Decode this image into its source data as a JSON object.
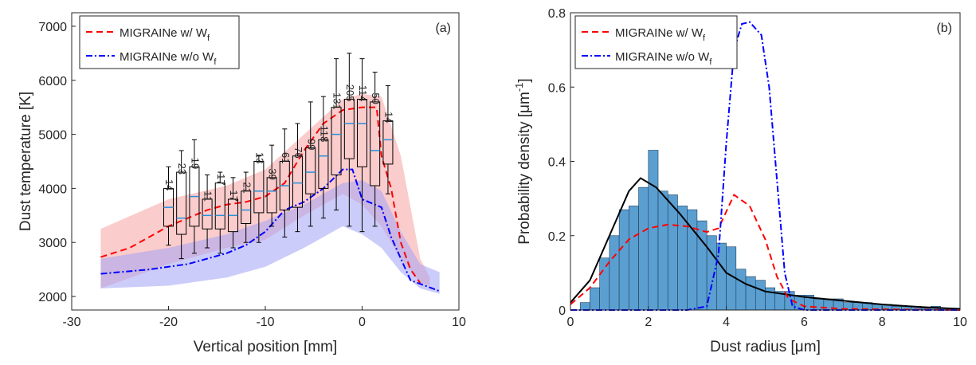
{
  "chart_data": [
    {
      "type": "box",
      "panel_label": "(a)",
      "xlabel": "Vertical position [mm]",
      "ylabel": "Dust temperature [K]",
      "xlim": [
        -30,
        10
      ],
      "ylim": [
        1750,
        7250
      ],
      "xticks": [
        -30,
        -20,
        -10,
        0,
        10
      ],
      "yticks": [
        2000,
        3000,
        4000,
        5000,
        6000,
        7000
      ],
      "bands": [
        {
          "color": "#f5a3a3",
          "x": [
            -27,
            -20,
            -14,
            -10,
            -6,
            -2,
            0,
            2,
            4,
            6,
            7
          ],
          "lower": [
            2150,
            2600,
            2900,
            3050,
            3500,
            3900,
            3700,
            3300,
            2700,
            2250,
            2200
          ],
          "upper": [
            3250,
            3800,
            4050,
            4350,
            5000,
            5650,
            5750,
            5700,
            4600,
            2700,
            2350
          ]
        },
        {
          "color": "#a3a3f5",
          "x": [
            -27,
            -20,
            -14,
            -10,
            -6,
            -2,
            0,
            2,
            4,
            6,
            8
          ],
          "lower": [
            2150,
            2200,
            2350,
            2550,
            2900,
            3300,
            3150,
            2900,
            2450,
            2150,
            2050
          ],
          "upper": [
            2700,
            2900,
            3150,
            3400,
            3700,
            4100,
            4150,
            3950,
            3200,
            2600,
            2450
          ]
        }
      ],
      "series": [
        {
          "name": "MIGRAINe w/ W",
          "name_subscript": "f",
          "color": "#ff0000",
          "dash": "8 5",
          "x": [
            -27,
            -24,
            -22,
            -20,
            -18,
            -16,
            -14,
            -12,
            -10,
            -8,
            -6,
            -4,
            -2,
            0,
            1.5,
            2,
            3,
            4,
            5,
            6
          ],
          "values": [
            2730,
            2900,
            3100,
            3300,
            3450,
            3600,
            3700,
            3750,
            3850,
            4100,
            4700,
            5200,
            5450,
            5500,
            5500,
            4600,
            4000,
            3000,
            2500,
            2250
          ]
        },
        {
          "name": "MIGRAINe w/o W",
          "name_subscript": "f",
          "color": "#0000ff",
          "dash": "8 3 2 3",
          "x": [
            -27,
            -22,
            -18,
            -14,
            -12,
            -10,
            -8,
            -6,
            -4,
            -2,
            -1,
            0,
            2,
            3,
            5,
            8
          ],
          "values": [
            2420,
            2500,
            2600,
            2800,
            2950,
            3200,
            3600,
            3750,
            4000,
            4350,
            4350,
            3800,
            3650,
            3100,
            2300,
            2100
          ]
        }
      ],
      "boxes": [
        {
          "x": -20,
          "whislo": 2950,
          "q1": 3300,
          "med": 3650,
          "q3": 4000,
          "whishi": 4400,
          "count": 14
        },
        {
          "x": -18.67,
          "whislo": 2700,
          "q1": 3150,
          "med": 3450,
          "q3": 4300,
          "whishi": 4700,
          "count": 23
        },
        {
          "x": -17.33,
          "whislo": 2800,
          "q1": 3300,
          "med": 3850,
          "q3": 4400,
          "whishi": 4900,
          "count": 19
        },
        {
          "x": -16,
          "whislo": 2900,
          "q1": 3250,
          "med": 3500,
          "q3": 3800,
          "whishi": 4250,
          "count": 11
        },
        {
          "x": -14.67,
          "whislo": 2800,
          "q1": 3250,
          "med": 3500,
          "q3": 4100,
          "whishi": 4300,
          "count": 17
        },
        {
          "x": -13.33,
          "whislo": 2900,
          "q1": 3200,
          "med": 3500,
          "q3": 3800,
          "whishi": 4200,
          "count": 17
        },
        {
          "x": -12,
          "whislo": 3000,
          "q1": 3350,
          "med": 3600,
          "q3": 3950,
          "whishi": 4300,
          "count": 21
        },
        {
          "x": -10.67,
          "whislo": 3000,
          "q1": 3550,
          "med": 3950,
          "q3": 4500,
          "whishi": 4600,
          "count": 13
        },
        {
          "x": -9.33,
          "whislo": 3300,
          "q1": 3550,
          "med": 3950,
          "q3": 4200,
          "whishi": 4800,
          "count": 39
        },
        {
          "x": -8,
          "whislo": 3100,
          "q1": 3600,
          "med": 4050,
          "q3": 4500,
          "whishi": 5100,
          "count": 61
        },
        {
          "x": -6.67,
          "whislo": 3200,
          "q1": 3650,
          "med": 4100,
          "q3": 4600,
          "whishi": 5200,
          "count": 76
        },
        {
          "x": -5.33,
          "whislo": 3300,
          "q1": 3900,
          "med": 4300,
          "q3": 4750,
          "whishi": 5600,
          "count": 99
        },
        {
          "x": -4,
          "whislo": 3450,
          "q1": 4000,
          "med": 4600,
          "q3": 4900,
          "whishi": 5700,
          "count": 118
        },
        {
          "x": -2.67,
          "whislo": 3600,
          "q1": 4250,
          "med": 5000,
          "q3": 5500,
          "whishi": 6400,
          "count": 131
        },
        {
          "x": -1.33,
          "whislo": 3300,
          "q1": 4550,
          "med": 5200,
          "q3": 5650,
          "whishi": 6500,
          "count": 205
        },
        {
          "x": 0,
          "whislo": 3200,
          "q1": 4400,
          "med": 5200,
          "q3": 5650,
          "whishi": 6400,
          "count": 114
        },
        {
          "x": 1.33,
          "whislo": 3300,
          "q1": 4050,
          "med": 4700,
          "q3": 5600,
          "whishi": 6150,
          "count": 50
        },
        {
          "x": 2.67,
          "whislo": 3900,
          "q1": 4450,
          "med": 4900,
          "q3": 5250,
          "whishi": 5900,
          "count": 14
        }
      ]
    },
    {
      "type": "histogram",
      "panel_label": "(b)",
      "xlabel": "Dust radius [μm]",
      "ylabel": "Probability density [μm",
      "ylabel_superscript": "-1",
      "ylabel_end": "]",
      "xlim": [
        0,
        10
      ],
      "ylim": [
        0,
        0.8
      ],
      "xticks": [
        0,
        2,
        4,
        6,
        8,
        10
      ],
      "yticks": [
        0,
        0.2,
        0.4,
        0.6,
        0.8
      ],
      "hist_color": "#5b9fd1",
      "bins": [
        0,
        0.25,
        0.5,
        0.75,
        1,
        1.25,
        1.5,
        1.75,
        2,
        2.25,
        2.5,
        2.75,
        3,
        3.25,
        3.5,
        3.75,
        4,
        4.25,
        4.5,
        4.75,
        5,
        5.25,
        5.5,
        5.75,
        6,
        6.25,
        6.5,
        6.75,
        7,
        7.25,
        7.5,
        7.75,
        8,
        8.25,
        8.5,
        8.75,
        9,
        9.25,
        9.5,
        9.75,
        10
      ],
      "counts": [
        0,
        0.02,
        0.06,
        0.14,
        0.2,
        0.27,
        0.28,
        0.33,
        0.43,
        0.32,
        0.31,
        0.28,
        0.27,
        0.24,
        0.2,
        0.18,
        0.17,
        0.11,
        0.09,
        0.08,
        0.06,
        0.05,
        0.05,
        0.04,
        0.04,
        0.03,
        0.03,
        0.03,
        0.02,
        0.02,
        0.02,
        0.015,
        0.015,
        0.01,
        0.01,
        0.01,
        0.005,
        0.01,
        0.005,
        0.005
      ],
      "fit": {
        "color": "#000000",
        "x": [
          0,
          0.5,
          1,
          1.5,
          1.8,
          2.2,
          2.8,
          3.5,
          4,
          4.5,
          5,
          6,
          7,
          8,
          9,
          10
        ],
        "values": [
          0.02,
          0.08,
          0.2,
          0.32,
          0.355,
          0.33,
          0.26,
          0.17,
          0.1,
          0.07,
          0.05,
          0.035,
          0.025,
          0.015,
          0.008,
          0.003
        ]
      },
      "series": [
        {
          "name": "MIGRAINe w/ W",
          "name_subscript": "f",
          "color": "#ff0000",
          "dash": "8 5",
          "x": [
            0,
            0.5,
            1,
            1.5,
            2,
            2.5,
            3,
            3.5,
            3.8,
            4.2,
            4.6,
            5,
            5.3,
            5.6,
            6,
            7,
            10
          ],
          "values": [
            0.015,
            0.06,
            0.13,
            0.19,
            0.22,
            0.23,
            0.225,
            0.21,
            0.22,
            0.31,
            0.28,
            0.19,
            0.09,
            0.03,
            0.01,
            0.003,
            0
          ]
        },
        {
          "name": "MIGRAINe w/o W",
          "name_subscript": "f",
          "color": "#0000ff",
          "dash": "8 3 2 3",
          "x": [
            0,
            3,
            3.5,
            3.8,
            4,
            4.2,
            4.4,
            4.6,
            4.9,
            5.1,
            5.3,
            5.5,
            5.7,
            6,
            10
          ],
          "values": [
            0,
            0,
            0.01,
            0.15,
            0.45,
            0.7,
            0.77,
            0.775,
            0.74,
            0.6,
            0.35,
            0.1,
            0.01,
            0,
            0
          ]
        }
      ]
    }
  ]
}
